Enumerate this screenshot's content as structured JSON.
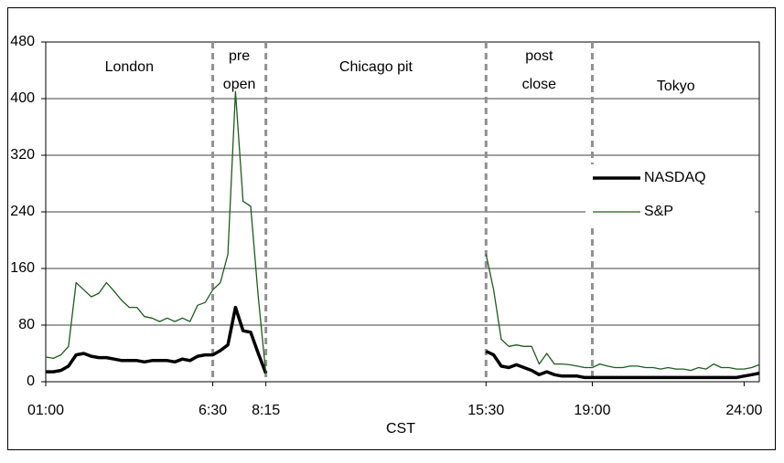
{
  "chart_data": {
    "type": "line",
    "xlabel": "CST",
    "x": [
      1,
      1.25,
      1.5,
      1.75,
      2,
      2.25,
      2.5,
      2.75,
      3,
      3.25,
      3.5,
      3.75,
      4,
      4.25,
      4.5,
      4.75,
      5,
      5.25,
      5.5,
      5.75,
      6,
      6.25,
      6.5,
      6.75,
      7,
      7.25,
      7.5,
      7.75,
      8,
      8.25,
      12,
      15.5,
      15.75,
      16,
      16.25,
      16.5,
      16.75,
      17,
      17.25,
      17.5,
      17.75,
      18,
      18.25,
      18.5,
      18.75,
      19,
      19.25,
      19.5,
      19.75,
      20,
      20.25,
      20.5,
      20.75,
      21,
      21.25,
      21.5,
      21.75,
      22,
      22.25,
      22.5,
      22.75,
      23,
      23.25,
      23.5,
      23.75,
      24,
      24.25,
      24.5
    ],
    "series": [
      {
        "name": "NASDAQ",
        "color": "#000000",
        "width": 3.5,
        "values": [
          14,
          14,
          16,
          22,
          38,
          40,
          36,
          34,
          34,
          32,
          30,
          30,
          30,
          28,
          30,
          30,
          30,
          28,
          32,
          30,
          36,
          38,
          38,
          44,
          52,
          105,
          72,
          70,
          40,
          12,
          null,
          43,
          38,
          22,
          20,
          24,
          20,
          16,
          10,
          14,
          10,
          8,
          8,
          8,
          6,
          6,
          6,
          6,
          6,
          6,
          6,
          6,
          6,
          6,
          6,
          6,
          6,
          6,
          6,
          6,
          6,
          6,
          6,
          6,
          6,
          8,
          10,
          12
        ]
      },
      {
        "name": "S&P",
        "color": "#1e5a1e",
        "width": 1.3,
        "values": [
          35,
          33,
          38,
          50,
          140,
          130,
          120,
          125,
          140,
          128,
          115,
          105,
          105,
          92,
          90,
          85,
          90,
          85,
          90,
          85,
          108,
          112,
          130,
          140,
          180,
          410,
          255,
          248,
          120,
          12,
          null,
          180,
          130,
          60,
          50,
          52,
          50,
          50,
          25,
          40,
          25,
          25,
          24,
          22,
          20,
          20,
          25,
          22,
          20,
          20,
          22,
          22,
          20,
          20,
          18,
          20,
          18,
          18,
          16,
          20,
          18,
          25,
          20,
          20,
          18,
          18,
          20,
          24
        ]
      }
    ],
    "xlim": [
      1,
      24.5
    ],
    "xticks": [
      {
        "value": 1,
        "label": "01:00"
      },
      {
        "value": 6.5,
        "label": "6:30"
      },
      {
        "value": 8.25,
        "label": "8:15"
      },
      {
        "value": 15.5,
        "label": "15:30"
      },
      {
        "value": 19,
        "label": "19:00"
      },
      {
        "value": 24,
        "label": "24:00"
      }
    ],
    "ylim": [
      0,
      480
    ],
    "yticks": [
      0,
      80,
      160,
      240,
      320,
      400,
      480
    ],
    "grid": true,
    "dividers": [
      6.5,
      8.25,
      15.5,
      19
    ],
    "regions": [
      [
        "London"
      ],
      [
        "pre",
        "open"
      ],
      [
        "Chicago pit"
      ],
      [
        "post",
        "close"
      ],
      [
        "Tokyo"
      ]
    ],
    "legend": "right"
  }
}
